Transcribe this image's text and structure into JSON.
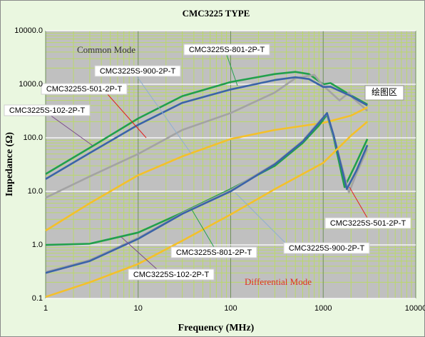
{
  "chart_data": {
    "type": "line",
    "title": "CMC3225 TYPE",
    "x_label": "Frequency (MHz)",
    "y_label": "Impedance (Ω)",
    "xscale": "log",
    "yscale": "log",
    "xlim": [
      1,
      10000
    ],
    "ylim": [
      0.1,
      10000
    ],
    "xticks": [
      1,
      10,
      100,
      1000,
      10000
    ],
    "yticks": [
      0.1,
      {
        "value": 1,
        "label": "1.0"
      },
      {
        "value": 10,
        "label": "10.0"
      },
      {
        "value": 100,
        "label": "100.0"
      },
      {
        "value": 1000,
        "label": "1000.0"
      },
      {
        "value": 10000,
        "label": "10000.0"
      }
    ],
    "grid": true,
    "annotations": [
      "Common Mode",
      "Differential Mode",
      "绘图区"
    ],
    "series": [
      {
        "name": "CMC3225S-801-2P-T",
        "color": "#21a04c",
        "x": [
          1,
          3,
          10,
          30,
          100,
          300,
          500,
          700,
          1000,
          1200,
          2000,
          3000
        ],
        "values": [
          21,
          65,
          230,
          600,
          1100,
          1550,
          1700,
          1550,
          1000,
          1050,
          620,
          420
        ]
      },
      {
        "name": "CMC3225S-900-2P-T",
        "color": "#a3a3a3",
        "x": [
          1,
          3,
          10,
          30,
          100,
          300,
          500,
          800,
          1000,
          1500,
          1900,
          2100,
          3000
        ],
        "values": [
          7.6,
          19,
          50,
          140,
          290,
          700,
          1300,
          1500,
          940,
          500,
          700,
          550,
          320
        ]
      },
      {
        "name": "CMC3225S-501-2P-T",
        "color": "#3b64a8",
        "x": [
          1,
          3,
          10,
          30,
          100,
          300,
          500,
          700,
          1000,
          1200,
          2000,
          3000
        ],
        "values": [
          17,
          52,
          175,
          450,
          800,
          1200,
          1350,
          1250,
          890,
          900,
          600,
          400
        ]
      },
      {
        "name": "CMC3225S-102-2P-T",
        "color": "#f4c02a",
        "x": [
          1,
          3,
          10,
          30,
          100,
          300,
          1000,
          2000,
          3000
        ],
        "values": [
          1.85,
          6,
          20,
          45,
          95,
          140,
          190,
          260,
          370
        ]
      },
      {
        "name": "CMC3225S-801-2P-T",
        "color": "#21a04c",
        "x": [
          1,
          3,
          10,
          30,
          100,
          300,
          600,
          900,
          1100,
          1300,
          1700,
          2200,
          3000
        ],
        "values": [
          1.0,
          1.05,
          1.7,
          4,
          11,
          30,
          80,
          170,
          270,
          100,
          12,
          30,
          95
        ]
      },
      {
        "name": "CMC3225S-900-2P-T",
        "color": "#a3a3a3",
        "x": [
          1,
          3,
          10,
          30,
          100,
          300,
          600,
          900,
          1100,
          1300,
          1900,
          2300,
          3000
        ],
        "values": [
          0.31,
          0.52,
          1.35,
          3.9,
          10.5,
          33,
          88,
          200,
          280,
          105,
          9.5,
          22,
          62
        ]
      },
      {
        "name": "CMC3225S-501-2P-T",
        "color": "#3b64a8",
        "x": [
          1,
          3,
          10,
          30,
          100,
          300,
          600,
          900,
          1100,
          1300,
          1800,
          2300,
          3000
        ],
        "values": [
          0.3,
          0.5,
          1.3,
          3.8,
          10,
          32,
          85,
          190,
          290,
          110,
          11,
          25,
          73
        ]
      },
      {
        "name": "CMC3225S-102-2P-T",
        "color": "#f4c02a",
        "x": [
          1,
          3,
          10,
          30,
          100,
          300,
          1000,
          2000,
          3000
        ],
        "values": [
          0.107,
          0.2,
          0.44,
          1.2,
          3.7,
          11,
          34,
          110,
          200
        ]
      }
    ]
  }
}
